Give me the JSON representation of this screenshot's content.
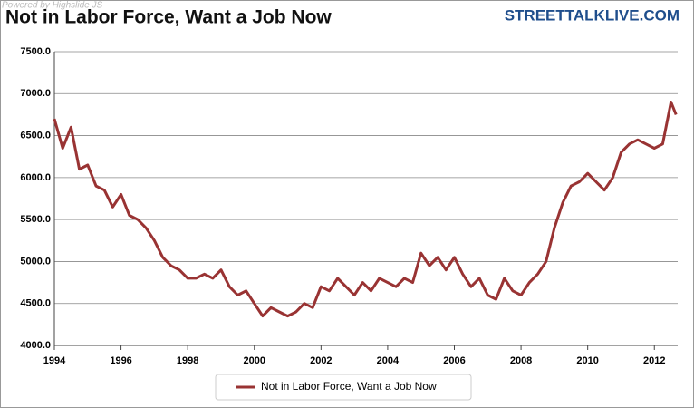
{
  "chart_data": {
    "type": "line",
    "title": "Not in Labor Force, Want a Job Now",
    "source": "STREETTALKLIVE.COM",
    "credit": "Powered by Highslide JS",
    "x": [
      1994,
      1994.25,
      1994.5,
      1994.75,
      1995,
      1995.25,
      1995.5,
      1995.75,
      1996,
      1996.25,
      1996.5,
      1996.75,
      1997,
      1997.25,
      1997.5,
      1997.75,
      1998,
      1998.25,
      1998.5,
      1998.75,
      1999,
      1999.25,
      1999.5,
      1999.75,
      2000,
      2000.25,
      2000.5,
      2000.75,
      2001,
      2001.25,
      2001.5,
      2001.75,
      2002,
      2002.25,
      2002.5,
      2002.75,
      2003,
      2003.25,
      2003.5,
      2003.75,
      2004,
      2004.25,
      2004.5,
      2004.75,
      2005,
      2005.25,
      2005.5,
      2005.75,
      2006,
      2006.25,
      2006.5,
      2006.75,
      2007,
      2007.25,
      2007.5,
      2007.75,
      2008,
      2008.25,
      2008.5,
      2008.75,
      2009,
      2009.25,
      2009.5,
      2009.75,
      2010,
      2010.25,
      2010.5,
      2010.75,
      2011,
      2011.25,
      2011.5,
      2011.75,
      2012,
      2012.25,
      2012.5,
      2012.65
    ],
    "series": [
      {
        "name": "Not in Labor Force, Want a Job Now",
        "color": "#993333",
        "values": [
          6700,
          6350,
          6600,
          6100,
          6150,
          5900,
          5850,
          5650,
          5800,
          5550,
          5500,
          5400,
          5250,
          5050,
          4950,
          4900,
          4800,
          4800,
          4850,
          4800,
          4900,
          4700,
          4600,
          4650,
          4500,
          4350,
          4450,
          4400,
          4350,
          4400,
          4500,
          4450,
          4700,
          4650,
          4800,
          4700,
          4600,
          4750,
          4650,
          4800,
          4750,
          4700,
          4800,
          4750,
          5100,
          4950,
          5050,
          4900,
          5050,
          4850,
          4700,
          4800,
          4600,
          4550,
          4800,
          4650,
          4600,
          4750,
          4850,
          5000,
          5400,
          5700,
          5900,
          5950,
          6050,
          5950,
          5850,
          6000,
          6300,
          6400,
          6450,
          6400,
          6350,
          6400,
          6900,
          6750
        ]
      }
    ],
    "xlim": [
      1994,
      2012.7
    ],
    "xticks": [
      1994,
      1996,
      1998,
      2000,
      2002,
      2004,
      2006,
      2008,
      2010,
      2012
    ],
    "ylim": [
      4000,
      7500
    ],
    "yticks": [
      {
        "value": 4000,
        "label": "4000.0"
      },
      {
        "value": 4500,
        "label": "4500.0"
      },
      {
        "value": 5000,
        "label": "5000.0"
      },
      {
        "value": 5500,
        "label": "5500.0"
      },
      {
        "value": 6000,
        "label": "6000.0"
      },
      {
        "value": 6500,
        "label": "6500.0"
      },
      {
        "value": 7000,
        "label": "7000.0"
      },
      {
        "value": 7500,
        "label": "7500.0"
      }
    ],
    "grid": true
  }
}
